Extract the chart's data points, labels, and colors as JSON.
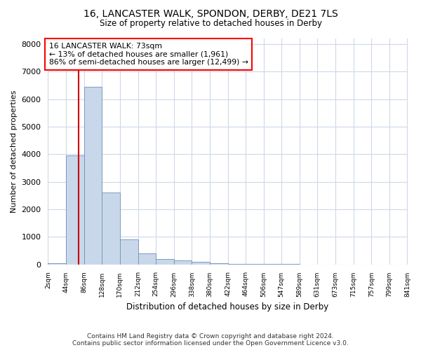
{
  "title1": "16, LANCASTER WALK, SPONDON, DERBY, DE21 7LS",
  "title2": "Size of property relative to detached houses in Derby",
  "xlabel": "Distribution of detached houses by size in Derby",
  "ylabel": "Number of detached properties",
  "annotation_line1": "16 LANCASTER WALK: 73sqm",
  "annotation_line2": "← 13% of detached houses are smaller (1,961)",
  "annotation_line3": "86% of semi-detached houses are larger (12,499) →",
  "property_size": 73,
  "bin_edges": [
    2,
    44,
    86,
    128,
    170,
    212,
    254,
    296,
    338,
    380,
    422,
    464,
    506,
    547,
    589,
    631,
    673,
    715,
    757,
    799,
    841
  ],
  "bar_heights": [
    50,
    3950,
    6450,
    2600,
    900,
    400,
    200,
    150,
    100,
    50,
    20,
    5,
    3,
    2,
    1,
    1,
    0,
    0,
    0,
    0
  ],
  "bar_color": "#c8d8ea",
  "bar_edge_color": "#7090b8",
  "marker_color": "#cc0000",
  "ylim": [
    0,
    8200
  ],
  "yticks": [
    0,
    1000,
    2000,
    3000,
    4000,
    5000,
    6000,
    7000,
    8000
  ],
  "footer1": "Contains HM Land Registry data © Crown copyright and database right 2024.",
  "footer2": "Contains public sector information licensed under the Open Government Licence v3.0.",
  "background_color": "#ffffff",
  "grid_color": "#ced8e8"
}
